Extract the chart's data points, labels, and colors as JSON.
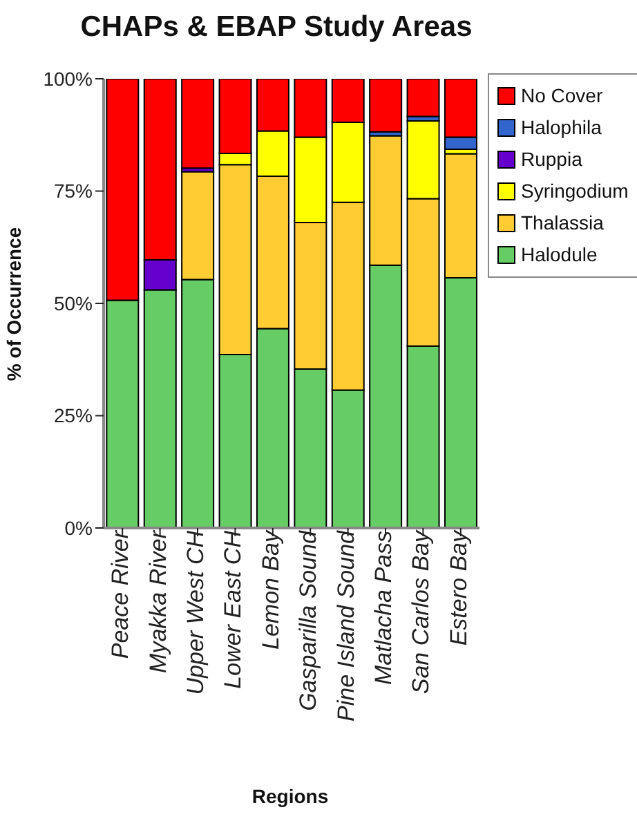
{
  "chart_data": {
    "type": "bar",
    "title": "CHAPs & EBAP Study Areas",
    "xlabel": "Regions",
    "ylabel": "% of Occurrence",
    "stacked": true,
    "legend": "right",
    "grid": false,
    "categories": [
      "Peace River",
      "Myakka River",
      "Upper West CH",
      "Lower East CH",
      "Lemon Bay",
      "Gasparilla Sound",
      "Pine Island Sound",
      "Matlacha Pass",
      "San Carlos Bay",
      "Estero Bay"
    ],
    "ylim": [
      0,
      100
    ],
    "yticks": [
      {
        "value": 0,
        "label": "0%"
      },
      {
        "value": 25,
        "label": "25%"
      },
      {
        "value": 50,
        "label": "50%"
      },
      {
        "value": 75,
        "label": "75%"
      },
      {
        "value": 100,
        "label": "100%"
      }
    ],
    "series": [
      {
        "name": "Halodule",
        "color": "#66cc66",
        "values": [
          50.7,
          53.0,
          55.3,
          38.6,
          44.4,
          35.4,
          30.7,
          58.5,
          40.5,
          55.7
        ]
      },
      {
        "name": "Thalassia",
        "color": "#ffcc33",
        "values": [
          0,
          0,
          24.0,
          42.3,
          33.9,
          32.6,
          41.8,
          28.8,
          32.8,
          27.6
        ]
      },
      {
        "name": "Syringodium",
        "color": "#ffff00",
        "values": [
          0,
          0,
          0,
          2.5,
          10.1,
          19.0,
          17.8,
          0,
          17.3,
          1.0
        ]
      },
      {
        "name": "Ruppia",
        "color": "#6600cc",
        "values": [
          0,
          6.7,
          0.8,
          0,
          0,
          0,
          0,
          0,
          0,
          0
        ]
      },
      {
        "name": "Halophila",
        "color": "#3366cc",
        "values": [
          0,
          0,
          0,
          0,
          0,
          0,
          0,
          0.9,
          1.0,
          2.7
        ]
      },
      {
        "name": "No Cover",
        "color": "#ff0000",
        "values": [
          49.3,
          40.3,
          19.9,
          16.6,
          11.6,
          13.0,
          9.7,
          11.8,
          8.4,
          13.0
        ]
      }
    ]
  }
}
